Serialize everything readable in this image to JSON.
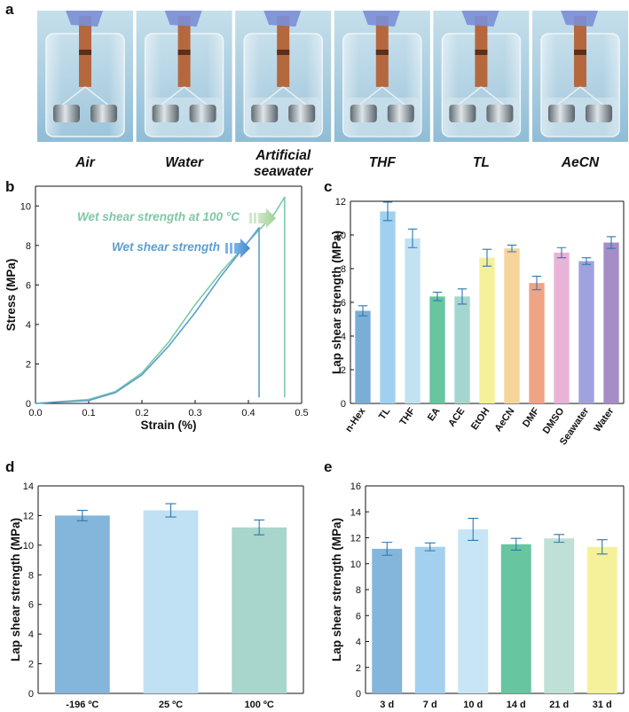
{
  "panel_labels": {
    "a": "a",
    "b": "b",
    "c": "c",
    "d": "d",
    "e": "e"
  },
  "photo_captions": [
    [
      "Air"
    ],
    [
      "Water"
    ],
    [
      "Artificial",
      "seawater"
    ],
    [
      "THF"
    ],
    [
      "TL"
    ],
    [
      "AeCN"
    ]
  ],
  "colors": {
    "blue_curve": "#5a9fd0",
    "green_curve": "#7ec8a6",
    "photo_bg": "#a9cde0",
    "error_bar": "#2f78b2"
  },
  "chart_data": [
    {
      "id": "b",
      "type": "line",
      "xlabel": "Strain (%)",
      "ylabel": "Stress (MPa)",
      "xlim": [
        0,
        0.5
      ],
      "ylim": [
        0,
        11
      ],
      "xticks": [
        "0.0",
        "0.1",
        "0.2",
        "0.3",
        "0.4",
        "0.5"
      ],
      "yticks": [
        "0",
        "2",
        "4",
        "6",
        "8",
        "10"
      ],
      "annotations": [
        "Wet shear strength at 100 °C",
        "Wet shear strength"
      ],
      "series": [
        {
          "name": "Wet shear strength",
          "color": "#5a9fd0",
          "x": [
            0,
            0.05,
            0.1,
            0.15,
            0.2,
            0.25,
            0.3,
            0.35,
            0.4,
            0.42,
            0.42
          ],
          "y": [
            0,
            0.08,
            0.15,
            0.55,
            1.45,
            2.9,
            4.6,
            6.5,
            8.2,
            8.9,
            0.3
          ]
        },
        {
          "name": "Wet shear strength at 100 °C",
          "color": "#7ec8a6",
          "x": [
            0,
            0.05,
            0.1,
            0.15,
            0.2,
            0.25,
            0.3,
            0.35,
            0.4,
            0.45,
            0.468,
            0.468
          ],
          "y": [
            0,
            0.1,
            0.2,
            0.6,
            1.55,
            3.1,
            5.0,
            6.7,
            8.2,
            9.65,
            10.45,
            0.3
          ]
        }
      ]
    },
    {
      "id": "c",
      "type": "bar",
      "ylabel": "Lap shear strength (MPa)",
      "ylim": [
        0,
        12
      ],
      "yticks": [
        "0",
        "2",
        "4",
        "6",
        "8",
        "10",
        "12"
      ],
      "categories": [
        "n-Hex",
        "TL",
        "THF",
        "EA",
        "ACE",
        "EtOH",
        "AeCN",
        "DMF",
        "DMSO",
        "Seawater",
        "Water"
      ],
      "values": [
        5.5,
        11.4,
        9.8,
        6.35,
        6.35,
        8.65,
        9.2,
        7.15,
        8.95,
        8.45,
        9.55
      ],
      "errors": [
        0.3,
        0.55,
        0.55,
        0.25,
        0.45,
        0.5,
        0.2,
        0.4,
        0.3,
        0.2,
        0.35
      ],
      "colors": [
        "#7aaed6",
        "#9fd1ef",
        "#c2e2f2",
        "#67c5a0",
        "#a4d6cf",
        "#f4f19a",
        "#f6d49a",
        "#efa484",
        "#e9b3d8",
        "#9fa2de",
        "#a58dc6"
      ]
    },
    {
      "id": "d",
      "type": "bar",
      "ylabel": "Lap shear strength (MPa)",
      "ylim": [
        0,
        14
      ],
      "yticks": [
        "0",
        "2",
        "4",
        "6",
        "8",
        "10",
        "12",
        "14"
      ],
      "categories": [
        "-196 ºC",
        "25 ºC",
        "100 ºC"
      ],
      "values": [
        12.0,
        12.35,
        11.2
      ],
      "errors": [
        0.35,
        0.45,
        0.5
      ],
      "colors": [
        "#84b5da",
        "#c0e0f3",
        "#a8d6cd"
      ]
    },
    {
      "id": "e",
      "type": "bar",
      "ylabel": "Lap shear strength (MPa)",
      "ylim": [
        0,
        16
      ],
      "yticks": [
        "0",
        "2",
        "4",
        "6",
        "8",
        "10",
        "12",
        "14",
        "16"
      ],
      "categories": [
        "3 d",
        "7 d",
        "10 d",
        "14 d",
        "21 d",
        "31 d"
      ],
      "values": [
        11.15,
        11.3,
        12.65,
        11.5,
        11.95,
        11.3
      ],
      "errors": [
        0.5,
        0.3,
        0.85,
        0.45,
        0.3,
        0.55
      ],
      "colors": [
        "#84b5da",
        "#a4d0ef",
        "#c8e5f5",
        "#67c5a0",
        "#bfe0d6",
        "#f4f19a"
      ]
    }
  ]
}
